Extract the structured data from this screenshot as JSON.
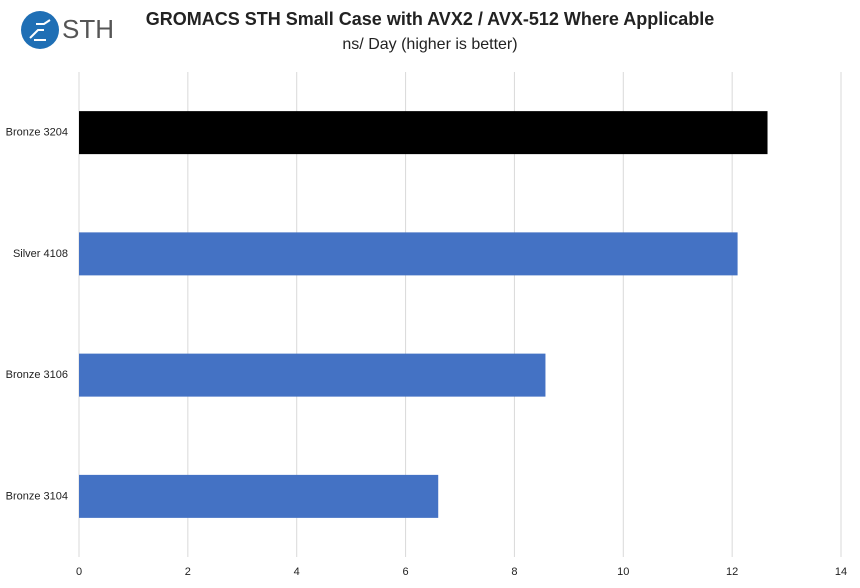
{
  "logo": "STH",
  "chart_data": {
    "type": "hbar",
    "title": "GROMACS STH Small Case with AVX2 / AVX-512 Where Applicable",
    "subtitle": "ns/ Day (higher is better)",
    "categories": [
      "Bronze 3204",
      "Silver 4108",
      "Bronze 3106",
      "Bronze 3104"
    ],
    "values": [
      12.65,
      12.1,
      8.57,
      6.6
    ],
    "colors": [
      "#000000",
      "#4472c4",
      "#4472c4",
      "#4472c4"
    ],
    "xlim": [
      0,
      14
    ],
    "xticks": [
      0,
      2,
      4,
      6,
      8,
      10,
      12,
      14
    ],
    "grid": true
  }
}
